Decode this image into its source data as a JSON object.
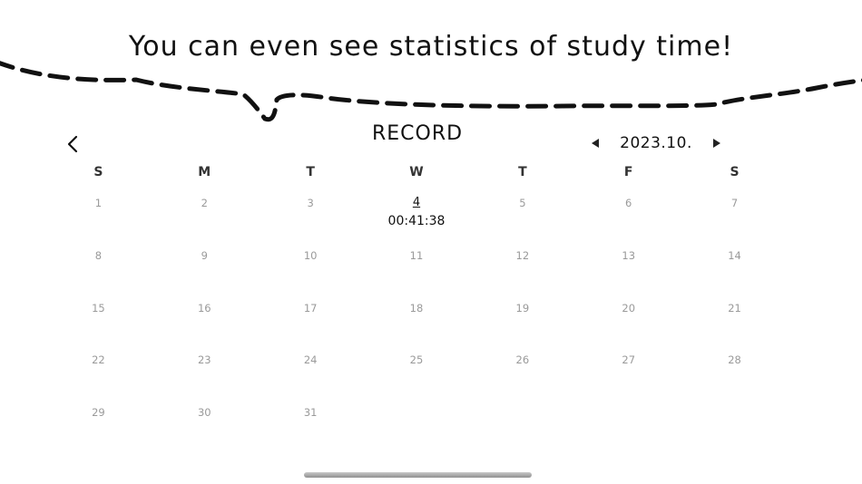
{
  "headline": "You can even see statistics of study time!",
  "header": {
    "title": "RECORD",
    "back_icon": "chevron-left-icon",
    "month": "2023.10.",
    "prev_icon": "triangle-left-icon",
    "next_icon": "triangle-right-icon"
  },
  "calendar": {
    "weekdays": [
      "S",
      "M",
      "T",
      "W",
      "T",
      "F",
      "S"
    ],
    "days": [
      {
        "day": "1",
        "time": ""
      },
      {
        "day": "2",
        "time": ""
      },
      {
        "day": "3",
        "time": ""
      },
      {
        "day": "4",
        "time": "00:41:38"
      },
      {
        "day": "5",
        "time": ""
      },
      {
        "day": "6",
        "time": ""
      },
      {
        "day": "7",
        "time": ""
      },
      {
        "day": "8",
        "time": ""
      },
      {
        "day": "9",
        "time": ""
      },
      {
        "day": "10",
        "time": ""
      },
      {
        "day": "11",
        "time": ""
      },
      {
        "day": "12",
        "time": ""
      },
      {
        "day": "13",
        "time": ""
      },
      {
        "day": "14",
        "time": ""
      },
      {
        "day": "15",
        "time": ""
      },
      {
        "day": "16",
        "time": ""
      },
      {
        "day": "17",
        "time": ""
      },
      {
        "day": "18",
        "time": ""
      },
      {
        "day": "19",
        "time": ""
      },
      {
        "day": "20",
        "time": ""
      },
      {
        "day": "21",
        "time": ""
      },
      {
        "day": "22",
        "time": ""
      },
      {
        "day": "23",
        "time": ""
      },
      {
        "day": "24",
        "time": ""
      },
      {
        "day": "25",
        "time": ""
      },
      {
        "day": "26",
        "time": ""
      },
      {
        "day": "27",
        "time": ""
      },
      {
        "day": "28",
        "time": ""
      },
      {
        "day": "29",
        "time": ""
      },
      {
        "day": "30",
        "time": ""
      },
      {
        "day": "31",
        "time": ""
      }
    ]
  },
  "colors": {
    "text": "#111111",
    "muted_day": "#9a9a9a",
    "dash": "#111111",
    "home_indicator": "#a8a8a8"
  }
}
